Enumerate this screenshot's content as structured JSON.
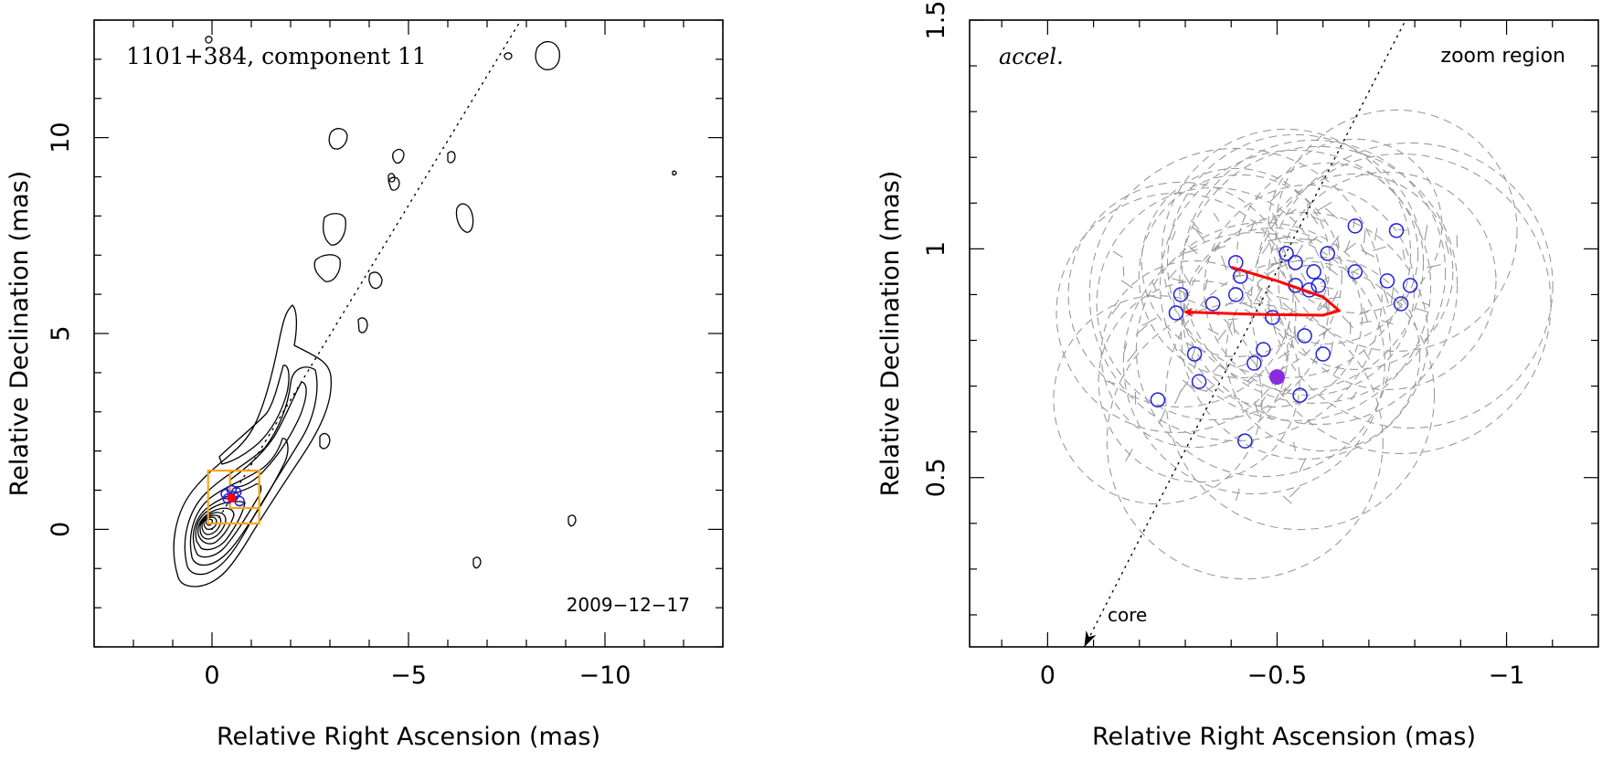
{
  "chart_data": [
    {
      "type": "scatter",
      "panel": "left",
      "title": "1101+384, component 11",
      "epoch": "2009−12−17",
      "xlabel": "Relative Right Ascension (mas)",
      "ylabel": "Relative Declination (mas)",
      "xlim": [
        3,
        -13
      ],
      "ylim": [
        -3,
        13
      ],
      "x_reversed": true,
      "xticks": [
        {
          "v": 0,
          "label": "0"
        },
        {
          "v": -5,
          "label": "−5"
        },
        {
          "v": -10,
          "label": "−10"
        }
      ],
      "yticks": [
        {
          "v": 0,
          "label": "0"
        },
        {
          "v": 5,
          "label": "5"
        },
        {
          "v": 10,
          "label": "10"
        }
      ],
      "jet_axis_line": {
        "from": [
          0,
          0
        ],
        "to": [
          -7.8,
          12.9
        ],
        "style": "dotted"
      },
      "zoom_box": {
        "ra": [
          0.1,
          -1.2
        ],
        "dec": [
          0.15,
          1.5
        ]
      },
      "component_positions": [
        {
          "ra": -0.55,
          "dec": 0.85
        },
        {
          "ra": -0.62,
          "dec": 0.95
        },
        {
          "ra": -0.4,
          "dec": 0.78
        },
        {
          "ra": -0.7,
          "dec": 0.72
        },
        {
          "ra": -0.5,
          "dec": 1.0
        },
        {
          "ra": -0.35,
          "dec": 0.9
        }
      ],
      "mean_position": {
        "ra": -0.5,
        "dec": 0.8
      },
      "grid": false,
      "legend": null,
      "colors": {
        "contours": "#000000",
        "zoom_box": "#f5a623",
        "components": "#1f1fe0",
        "mean": "#ff0000"
      }
    },
    {
      "type": "scatter",
      "panel": "right",
      "annotation_top_left": "accel.",
      "annotation_top_right": "zoom region",
      "annotation_core": "core",
      "xlabel": "Relative Right Ascension (mas)",
      "ylabel": "Relative Declination (mas)",
      "xlim": [
        0.17,
        -1.2
      ],
      "ylim": [
        0.13,
        1.5
      ],
      "x_reversed": true,
      "xticks": [
        {
          "v": 0,
          "label": "0"
        },
        {
          "v": -0.5,
          "label": "−0.5"
        },
        {
          "v": -1,
          "label": "−1"
        }
      ],
      "yticks": [
        {
          "v": 0.5,
          "label": "0.5"
        },
        {
          "v": 1,
          "label": "1"
        },
        {
          "v": 1.5,
          "label": "1.5"
        }
      ],
      "jet_axis_line": {
        "from": [
          -0.08,
          0.13
        ],
        "to": [
          -0.78,
          1.5
        ],
        "style": "dotted"
      },
      "core_arrow_tip": {
        "ra": -0.08,
        "dec": 0.13
      },
      "component_positions": [
        {
          "ra": -0.67,
          "dec": 1.05
        },
        {
          "ra": -0.76,
          "dec": 1.04
        },
        {
          "ra": -0.61,
          "dec": 0.99
        },
        {
          "ra": -0.52,
          "dec": 0.99
        },
        {
          "ra": -0.41,
          "dec": 0.97
        },
        {
          "ra": -0.54,
          "dec": 0.97
        },
        {
          "ra": -0.67,
          "dec": 0.95
        },
        {
          "ra": -0.58,
          "dec": 0.95
        },
        {
          "ra": -0.42,
          "dec": 0.94
        },
        {
          "ra": -0.54,
          "dec": 0.92
        },
        {
          "ra": -0.57,
          "dec": 0.91
        },
        {
          "ra": -0.59,
          "dec": 0.92
        },
        {
          "ra": -0.74,
          "dec": 0.93
        },
        {
          "ra": -0.79,
          "dec": 0.92
        },
        {
          "ra": -0.29,
          "dec": 0.9
        },
        {
          "ra": -0.41,
          "dec": 0.9
        },
        {
          "ra": -0.36,
          "dec": 0.88
        },
        {
          "ra": -0.77,
          "dec": 0.88
        },
        {
          "ra": -0.28,
          "dec": 0.86
        },
        {
          "ra": -0.49,
          "dec": 0.85
        },
        {
          "ra": -0.56,
          "dec": 0.81
        },
        {
          "ra": -0.32,
          "dec": 0.77
        },
        {
          "ra": -0.47,
          "dec": 0.78
        },
        {
          "ra": -0.6,
          "dec": 0.77
        },
        {
          "ra": -0.45,
          "dec": 0.75
        },
        {
          "ra": -0.33,
          "dec": 0.71
        },
        {
          "ra": -0.55,
          "dec": 0.68
        },
        {
          "ra": -0.24,
          "dec": 0.67
        },
        {
          "ra": -0.43,
          "dec": 0.58
        }
      ],
      "mean_position": {
        "ra": -0.5,
        "dec": 0.72
      },
      "acceleration_track": [
        {
          "ra": -0.4,
          "dec": 0.96
        },
        {
          "ra": -0.5,
          "dec": 0.93
        },
        {
          "ra": -0.6,
          "dec": 0.895
        },
        {
          "ra": -0.635,
          "dec": 0.865
        },
        {
          "ra": -0.6,
          "dec": 0.855
        },
        {
          "ra": -0.45,
          "dec": 0.857
        },
        {
          "ra": -0.3,
          "dec": 0.862
        }
      ],
      "grid": false,
      "legend": null,
      "colors": {
        "components": "#1f1fe0",
        "mean": "#8a2be2",
        "track": "#ff0000",
        "uncertainty": "#9a9a9a"
      }
    }
  ]
}
